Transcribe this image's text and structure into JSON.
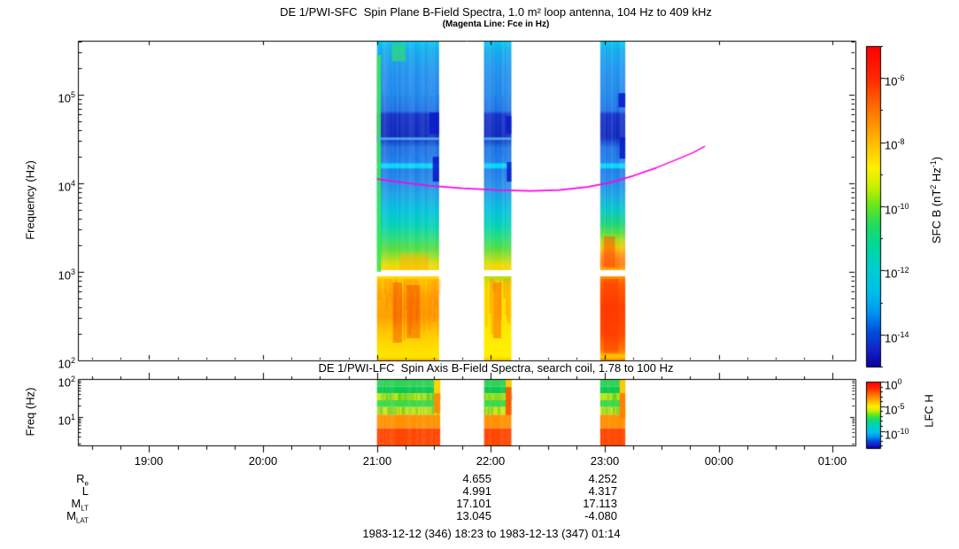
{
  "title": {
    "main": "DE 1/PWI-SFC  Spin Plane B-Field Spectra, 1.0 m² loop antenna, 104 Hz to 409 kHz",
    "sub": "(Magenta Line: Fce in Hz)"
  },
  "panel2_title": "DE 1/PWI-LFC  Spin Axis B-Field Spectra, search coil, 1.78 to 100 Hz",
  "ylabel1": "Frequency (Hz)",
  "ylabel2": "Freq (Hz)",
  "xticks": [
    "19:00",
    "20:00",
    "21:00",
    "22:00",
    "23:00",
    "00:00",
    "01:00"
  ],
  "p1_yticks": [
    {
      "base": "10",
      "exp": "5"
    },
    {
      "base": "10",
      "exp": "4"
    },
    {
      "base": "10",
      "exp": "3"
    },
    {
      "base": "10",
      "exp": "2"
    }
  ],
  "p2_yticks": [
    {
      "base": "10",
      "exp": "2"
    },
    {
      "base": "10",
      "exp": "1"
    }
  ],
  "cb1": {
    "ticks": [
      {
        "base": "10",
        "exp": "-6"
      },
      {
        "base": "10",
        "exp": "-8"
      },
      {
        "base": "10",
        "exp": "-10"
      },
      {
        "base": "10",
        "exp": "-12"
      },
      {
        "base": "10",
        "exp": "-14"
      }
    ],
    "label_parts": {
      "p1": "SFC B (nT",
      "s1": "2",
      "p2": " Hz",
      "s2": "-1",
      "p3": ")"
    }
  },
  "cb2": {
    "ticks": [
      {
        "base": "10",
        "exp": "0"
      },
      {
        "base": "10",
        "exp": "-5"
      },
      {
        "base": "10",
        "exp": "-10"
      }
    ],
    "label": "LFC H"
  },
  "ephemeris": {
    "rows": [
      {
        "base": "R",
        "sub": "e",
        "v22": "4.655",
        "v23": "4.252"
      },
      {
        "base": "L",
        "sub": "",
        "v22": "4.991",
        "v23": "4.317"
      },
      {
        "base": "M",
        "sub": "LT",
        "v22": "17.101",
        "v23": "17.113"
      },
      {
        "base": "M",
        "sub": "LAT",
        "v22": "13.045",
        "v23": "-4.080"
      }
    ]
  },
  "footer": "1983-12-12 (346) 18:23 to 1983-12-13 (347) 01:14",
  "chart_data": {
    "type": "heatmap",
    "time_range_hours": [
      18.375,
      25.2
    ],
    "xtick_hours": [
      19,
      20,
      21,
      22,
      23,
      24,
      25
    ],
    "panels": [
      {
        "name": "SFC",
        "freq_log_range": [
          2,
          5.612
        ],
        "ytick_logs": [
          5,
          4,
          3,
          2
        ]
      },
      {
        "name": "LFC",
        "freq_log_range": [
          0.25,
          2
        ],
        "ytick_logs": [
          2,
          1
        ]
      }
    ],
    "colorbar_gradient": [
      [
        0,
        "#ff0000"
      ],
      [
        0.1,
        "#ff2800"
      ],
      [
        0.22,
        "#ff8200"
      ],
      [
        0.32,
        "#ffc800"
      ],
      [
        0.38,
        "#fff000"
      ],
      [
        0.44,
        "#c8f000"
      ],
      [
        0.5,
        "#64e61e"
      ],
      [
        0.56,
        "#1edc64"
      ],
      [
        0.63,
        "#00d7a0"
      ],
      [
        0.7,
        "#00cdd2"
      ],
      [
        0.77,
        "#00beeb"
      ],
      [
        0.83,
        "#0096f0"
      ],
      [
        0.89,
        "#0050dc"
      ],
      [
        0.95,
        "#1420c8"
      ],
      [
        1,
        "#0a00a0"
      ]
    ],
    "cb1": {
      "log_range": [
        -5,
        -15
      ],
      "major_tick_logs": [
        -6,
        -8,
        -10,
        -12,
        -14
      ]
    },
    "cb2": {
      "log_range": [
        0,
        -13.5
      ],
      "major_tick_logs": [
        0,
        -5,
        -10
      ]
    },
    "fce_line": {
      "color": "#ff00e6",
      "points_t_logf": [
        [
          21.0,
          4.05
        ],
        [
          21.2,
          4.015
        ],
        [
          21.45,
          3.975
        ],
        [
          21.75,
          3.945
        ],
        [
          22.05,
          3.925
        ],
        [
          22.35,
          3.915
        ],
        [
          22.6,
          3.925
        ],
        [
          22.85,
          3.96
        ],
        [
          23.05,
          4.01
        ],
        [
          23.25,
          4.085
        ],
        [
          23.45,
          4.175
        ],
        [
          23.65,
          4.28
        ],
        [
          23.78,
          4.35
        ],
        [
          23.88,
          4.42
        ]
      ]
    },
    "sfc_gap_logf": [
      2.95,
      3.02
    ],
    "sfc_columns": [
      {
        "t": [
          21.0,
          21.545
        ],
        "upper_stops": [
          [
            5.612,
            "#00c8f0"
          ],
          [
            5.5,
            "#10aaee"
          ],
          [
            5.25,
            "#2090ee"
          ],
          [
            5.0,
            "#1e86ec"
          ],
          [
            4.82,
            "#1e74e6"
          ],
          [
            4.78,
            "#1430c8"
          ],
          [
            4.52,
            "#0f28be"
          ],
          [
            4.46,
            "#1450d2"
          ],
          [
            4.4,
            "#1c74e6"
          ],
          [
            4.24,
            "#1c7cea"
          ],
          [
            4.215,
            "#00d8f8"
          ],
          [
            4.18,
            "#00d8f8"
          ],
          [
            4.16,
            "#1c7cea"
          ],
          [
            4.02,
            "#2288e8"
          ],
          [
            3.88,
            "#18a2e6"
          ],
          [
            3.7,
            "#00c0dc"
          ],
          [
            3.52,
            "#00d2b4"
          ],
          [
            3.38,
            "#28dc78"
          ],
          [
            3.26,
            "#55dc3c"
          ],
          [
            3.16,
            "#a5dc1e"
          ],
          [
            3.08,
            "#e6dc00"
          ],
          [
            3.02,
            "#ffd200"
          ]
        ],
        "lower_stops": [
          [
            2.95,
            "#ffd800"
          ],
          [
            2.85,
            "#ffc800"
          ],
          [
            2.7,
            "#ffaa00"
          ],
          [
            2.5,
            "#ffa000"
          ],
          [
            2.32,
            "#ffc800"
          ],
          [
            2.15,
            "#ffdc00"
          ],
          [
            2.04,
            "#ffe600"
          ],
          [
            2.0,
            "#ffb400"
          ]
        ]
      },
      {
        "t": [
          21.94,
          22.18
        ],
        "same_as": 0,
        "lower_stops": [
          [
            2.95,
            "#aadc14"
          ],
          [
            2.9,
            "#e0e600"
          ],
          [
            2.78,
            "#ffe600"
          ],
          [
            2.55,
            "#ffe000"
          ],
          [
            2.3,
            "#ffeb00"
          ],
          [
            2.05,
            "#fff000"
          ],
          [
            2.0,
            "#ffc800"
          ]
        ]
      },
      {
        "t": [
          22.96,
          23.18
        ],
        "upper_stops": [
          [
            5.612,
            "#00c8f0"
          ],
          [
            5.5,
            "#10aaee"
          ],
          [
            5.25,
            "#2090ee"
          ],
          [
            5.0,
            "#1e86ec"
          ],
          [
            4.82,
            "#1e74e6"
          ],
          [
            4.78,
            "#1430c8"
          ],
          [
            4.52,
            "#0f28be"
          ],
          [
            4.46,
            "#1450d2"
          ],
          [
            4.4,
            "#1c74e6"
          ],
          [
            4.24,
            "#1c7cea"
          ],
          [
            4.215,
            "#00d8f8"
          ],
          [
            4.18,
            "#00d8f8"
          ],
          [
            4.16,
            "#1c7cea"
          ],
          [
            4.02,
            "#2288e8"
          ],
          [
            3.88,
            "#18a2e6"
          ],
          [
            3.7,
            "#00c8c8"
          ],
          [
            3.55,
            "#14d27a"
          ],
          [
            3.44,
            "#50dc3c"
          ],
          [
            3.36,
            "#aadc14"
          ],
          [
            3.28,
            "#f0c800"
          ],
          [
            3.18,
            "#ff8c14"
          ],
          [
            3.08,
            "#ff7800"
          ],
          [
            3.02,
            "#ffaa00"
          ]
        ],
        "lower_stops": [
          [
            2.95,
            "#ff9600"
          ],
          [
            2.86,
            "#ff6400"
          ],
          [
            2.6,
            "#ff4000"
          ],
          [
            2.3,
            "#ff4b00"
          ],
          [
            2.12,
            "#ff7800"
          ],
          [
            2.04,
            "#ffc800"
          ],
          [
            2.0,
            "#ff8200"
          ]
        ]
      }
    ],
    "sfc_features": [
      {
        "t": [
          21.0,
          21.035
        ],
        "f": [
          3.0,
          5.45
        ],
        "color": "#3ce65a",
        "alpha": 0.9
      },
      {
        "t": [
          21.13,
          21.25
        ],
        "f": [
          5.38,
          5.58
        ],
        "color": "#2ed287",
        "alpha": 0.85
      },
      {
        "t": [
          21.2,
          21.45
        ],
        "f": [
          3.02,
          3.2
        ],
        "color": "#ffb400",
        "alpha": 0.5
      },
      {
        "t": [
          21.14,
          21.22
        ],
        "f": [
          2.2,
          2.88
        ],
        "color": "#f04600",
        "alpha": 0.45
      },
      {
        "t": [
          21.26,
          21.38
        ],
        "f": [
          2.25,
          2.85
        ],
        "color": "#f03c00",
        "alpha": 0.4
      },
      {
        "t": [
          22.02,
          22.09
        ],
        "f": [
          2.25,
          2.88
        ],
        "color": "#ff5a00",
        "alpha": 0.5
      },
      {
        "t": [
          22.99,
          23.12
        ],
        "f": [
          2.08,
          2.92
        ],
        "color": "#ff3200",
        "alpha": 0.45
      },
      {
        "t": [
          22.99,
          23.09
        ],
        "f": [
          3.05,
          3.4
        ],
        "color": "#ff4600",
        "alpha": 0.5
      },
      {
        "t": [
          21.0,
          21.545
        ],
        "f": [
          4.49,
          4.52
        ],
        "color": "#4fb4f0",
        "alpha": 0.85
      },
      {
        "t": [
          21.94,
          22.18
        ],
        "f": [
          4.49,
          4.52
        ],
        "color": "#4fb4f0",
        "alpha": 0.85
      },
      {
        "t": [
          21.46,
          21.545
        ],
        "f": [
          4.56,
          4.8
        ],
        "color": "#0a1ec8",
        "alpha": 0.9
      },
      {
        "t": [
          21.49,
          21.545
        ],
        "f": [
          4.02,
          4.3
        ],
        "color": "#0a1ec8",
        "alpha": 0.9
      },
      {
        "t": [
          22.13,
          22.18
        ],
        "f": [
          4.56,
          4.76
        ],
        "color": "#0a1ec8",
        "alpha": 0.9
      },
      {
        "t": [
          22.14,
          22.18
        ],
        "f": [
          4.02,
          4.24
        ],
        "color": "#0a1ec8",
        "alpha": 0.9
      },
      {
        "t": [
          23.13,
          23.18
        ],
        "f": [
          4.28,
          4.52
        ],
        "color": "#0a1ec8",
        "alpha": 0.9
      },
      {
        "t": [
          23.12,
          23.18
        ],
        "f": [
          4.86,
          5.02
        ],
        "color": "#0a1ec8",
        "alpha": 0.9
      }
    ],
    "lfc_columns": [
      {
        "t": [
          21.0,
          21.555
        ]
      },
      {
        "t": [
          21.94,
          22.18
        ]
      },
      {
        "t": [
          22.96,
          23.18
        ]
      }
    ],
    "lfc_bands": [
      [
        2.0,
        1.8,
        "#2dd255"
      ],
      [
        1.8,
        1.62,
        "#0ac84b"
      ],
      [
        1.62,
        1.44,
        "#96dc1e"
      ],
      [
        1.44,
        1.26,
        "#3cd746"
      ],
      [
        1.26,
        1.06,
        "#afdc23"
      ],
      [
        1.06,
        0.7,
        "#ff9100"
      ],
      [
        0.7,
        0.25,
        "#ff4600"
      ]
    ],
    "lfc_speckle_bands": [
      [
        1.62,
        1.44
      ],
      [
        1.26,
        1.06
      ]
    ],
    "lfc_edge_strips": [
      {
        "t": [
          21.5,
          21.555
        ],
        "f": [
          1.62,
          2.0
        ],
        "color": "#ffd200"
      },
      {
        "t": [
          21.5,
          21.555
        ],
        "f": [
          1.1,
          1.62
        ],
        "color": "#ff8c00"
      },
      {
        "t": [
          22.13,
          22.18
        ],
        "f": [
          1.78,
          2.0
        ],
        "color": "#ffc800"
      },
      {
        "t": [
          22.13,
          22.18
        ],
        "f": [
          1.05,
          1.78
        ],
        "color": "#ff5a00"
      },
      {
        "t": [
          23.13,
          23.18
        ],
        "f": [
          1.62,
          2.0
        ],
        "color": "#ffc800"
      },
      {
        "t": [
          23.13,
          23.18
        ],
        "f": [
          0.95,
          1.62
        ],
        "color": "#ff8200"
      }
    ]
  }
}
